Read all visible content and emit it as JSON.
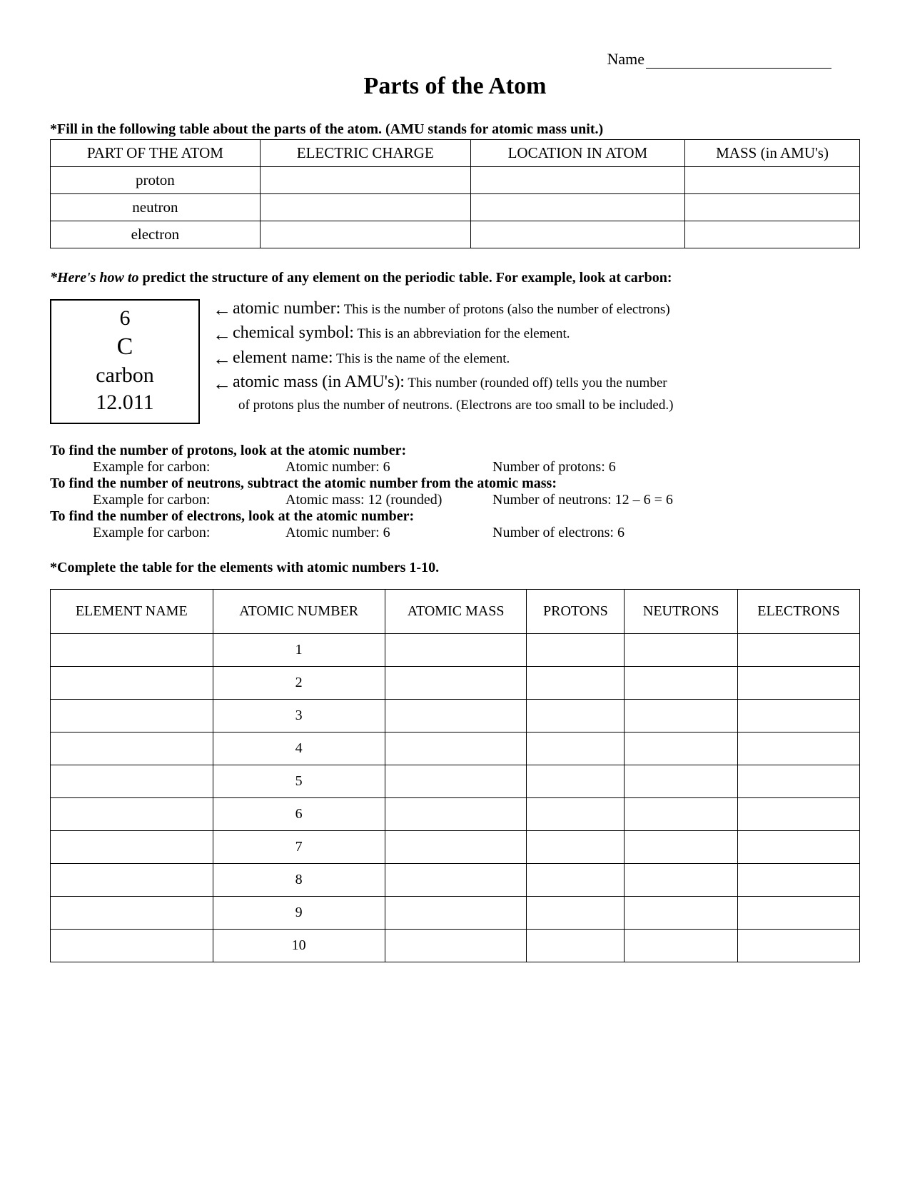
{
  "header": {
    "name_label": "Name"
  },
  "title": "Parts of the Atom",
  "instr1": "*Fill in the following table about the parts of the atom.  (AMU stands for atomic mass unit.)",
  "parts_table": {
    "headers": [
      "PART OF THE ATOM",
      "ELECTRIC CHARGE",
      "LOCATION IN ATOM",
      "MASS (in AMU's)"
    ],
    "rows": [
      "proton",
      "neutron",
      "electron"
    ]
  },
  "howto_prefix": "*Here's how to",
  "howto_rest": " predict the structure of any element on the periodic table.  For example, look at carbon:",
  "element_box": {
    "atomic_number": "6",
    "symbol": "C",
    "name": "carbon",
    "mass": "12.011"
  },
  "defs": [
    {
      "term": "atomic number:",
      "desc": " This is the number of protons (also the number of electrons)"
    },
    {
      "term": "chemical symbol:",
      "desc": "  This is an abbreviation for the element."
    },
    {
      "term": "element name:",
      "desc": "  This is the name of the element."
    },
    {
      "term": "atomic mass (in AMU's):",
      "desc": " This number (rounded off) tells you the number"
    }
  ],
  "defs_cont": "of protons plus the number of neutrons. (Electrons are too small to be included.)",
  "find": {
    "protons_hd": "To find the number of protons, look at the atomic number:",
    "protons_ex": {
      "c1": "Example for carbon:",
      "c2": "Atomic number:  6",
      "c3": "Number of protons:  6"
    },
    "neutrons_hd": "To find the number of neutrons, subtract the atomic number from the atomic mass:",
    "neutrons_ex": {
      "c1": "Example for carbon:",
      "c2": "Atomic mass:  12 (rounded)",
      "c3": "Number of neutrons:  12 – 6 = 6"
    },
    "electrons_hd": "To find the number of electrons, look at the atomic number:",
    "electrons_ex": {
      "c1": "Example for carbon:",
      "c2": "Atomic number:  6",
      "c3": "Number of electrons:  6"
    }
  },
  "complete": "*Complete the table for the elements with atomic numbers 1-10.",
  "elements_table": {
    "headers": [
      "ELEMENT NAME",
      "ATOMIC NUMBER",
      "ATOMIC MASS",
      "PROTONS",
      "NEUTRONS",
      "ELECTRONS"
    ],
    "atomic_numbers": [
      "1",
      "2",
      "3",
      "4",
      "5",
      "6",
      "7",
      "8",
      "9",
      "10"
    ]
  },
  "arrow_glyph": "←"
}
